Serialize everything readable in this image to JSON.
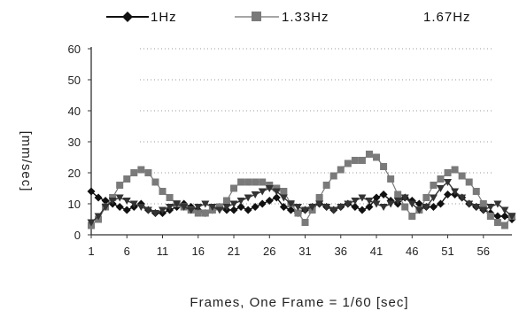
{
  "chart_data": {
    "type": "line",
    "title": "",
    "xlabel": "Frames, One Frame = 1/60 [sec]",
    "ylabel": "[mm/sec]",
    "ylim": [
      0,
      60
    ],
    "yticks": [
      0,
      10,
      20,
      30,
      40,
      50,
      60
    ],
    "xticks": [
      1,
      6,
      11,
      16,
      21,
      26,
      31,
      36,
      41,
      46,
      51,
      56
    ],
    "xlim": [
      1,
      60
    ],
    "grid": "dotted horizontal",
    "legend": "top",
    "series": [
      {
        "name": "1Hz",
        "color": "#111111",
        "marker": "diamond",
        "x": [
          1,
          2,
          3,
          4,
          5,
          6,
          7,
          8,
          9,
          10,
          11,
          12,
          13,
          14,
          15,
          16,
          17,
          18,
          19,
          20,
          21,
          22,
          23,
          24,
          25,
          26,
          27,
          28,
          29,
          30,
          31,
          32,
          33,
          34,
          35,
          36,
          37,
          38,
          39,
          40,
          41,
          42,
          43,
          44,
          45,
          46,
          47,
          48,
          49,
          50,
          51,
          52,
          53,
          54,
          55,
          56,
          57,
          58,
          59,
          60
        ],
        "values": [
          14,
          12,
          11,
          10,
          9,
          8,
          9,
          10,
          8,
          7,
          7,
          8,
          9,
          10,
          9,
          8,
          7,
          8,
          9,
          8,
          8,
          9,
          8,
          9,
          10,
          11,
          12,
          9,
          8,
          7,
          8,
          9,
          10,
          9,
          8,
          9,
          10,
          9,
          8,
          9,
          12,
          13,
          11,
          10,
          12,
          11,
          10,
          9,
          9,
          10,
          13,
          13,
          12,
          10,
          9,
          8,
          7,
          6,
          6,
          5
        ]
      },
      {
        "name": "1.33Hz",
        "color": "#7a7a7a",
        "marker": "square",
        "x": [
          1,
          2,
          3,
          4,
          5,
          6,
          7,
          8,
          9,
          10,
          11,
          12,
          13,
          14,
          15,
          16,
          17,
          18,
          19,
          20,
          21,
          22,
          23,
          24,
          25,
          26,
          27,
          28,
          29,
          30,
          31,
          32,
          33,
          34,
          35,
          36,
          37,
          38,
          39,
          40,
          41,
          42,
          43,
          44,
          45,
          46,
          47,
          48,
          49,
          50,
          51,
          52,
          53,
          54,
          55,
          56,
          57,
          58,
          59,
          60
        ],
        "values": [
          3,
          5,
          9,
          12,
          16,
          18,
          20,
          21,
          20,
          17,
          14,
          12,
          10,
          9,
          8,
          7,
          7,
          8,
          9,
          11,
          15,
          17,
          17,
          17,
          17,
          16,
          15,
          14,
          10,
          7,
          4,
          8,
          12,
          16,
          19,
          21,
          23,
          24,
          24,
          26,
          25,
          22,
          18,
          13,
          9,
          6,
          8,
          12,
          16,
          18,
          20,
          21,
          19,
          17,
          14,
          10,
          6,
          4,
          3,
          6
        ]
      },
      {
        "name": "1.67Hz",
        "color": "#333333",
        "marker": "triangle",
        "x": [
          1,
          2,
          3,
          4,
          5,
          6,
          7,
          8,
          9,
          10,
          11,
          12,
          13,
          14,
          15,
          16,
          17,
          18,
          19,
          20,
          21,
          22,
          23,
          24,
          25,
          26,
          27,
          28,
          29,
          30,
          31,
          32,
          33,
          34,
          35,
          36,
          37,
          38,
          39,
          40,
          41,
          42,
          43,
          44,
          45,
          46,
          47,
          48,
          49,
          50,
          51,
          52,
          53,
          54,
          55,
          56,
          57,
          58,
          59,
          60
        ],
        "values": [
          4,
          6,
          9,
          11,
          12,
          11,
          10,
          9,
          8,
          7,
          8,
          9,
          10,
          9,
          8,
          9,
          10,
          9,
          8,
          9,
          10,
          11,
          12,
          13,
          14,
          15,
          14,
          12,
          10,
          9,
          8,
          9,
          10,
          9,
          8,
          9,
          10,
          11,
          12,
          11,
          10,
          9,
          10,
          11,
          12,
          10,
          8,
          9,
          12,
          15,
          17,
          14,
          12,
          10,
          9,
          8,
          9,
          10,
          8,
          6
        ]
      }
    ]
  }
}
